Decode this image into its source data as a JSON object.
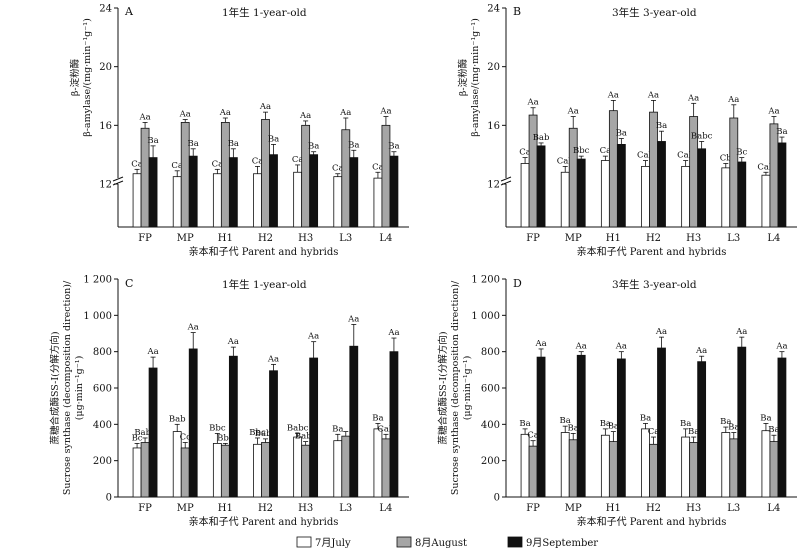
{
  "colors": {
    "july": "#ffffff",
    "august": "#a6a6a6",
    "september": "#111111"
  },
  "legend": {
    "july": "7月July",
    "august": "8月August",
    "september": "9月September"
  },
  "chart_data": [
    {
      "type": "bar",
      "panel": "A",
      "title": "1年生 1-year-old",
      "ylabel_cn": "β-淀粉酶",
      "ylabel_en": "β-amylase/(mg·min⁻¹g⁻¹)",
      "xlabel": "亲本和子代 Parent and hybrids",
      "categories": [
        "FP",
        "MP",
        "H1",
        "H2",
        "H3",
        "L3",
        "L4"
      ],
      "ylim": [
        0,
        24
      ],
      "yaxis_break": true,
      "yticks": [
        "12",
        "16",
        "20",
        "24"
      ],
      "series": [
        {
          "name": "7月July",
          "values": [
            12.7,
            12.5,
            12.7,
            12.7,
            12.8,
            12.5,
            12.4
          ],
          "errors": [
            0.3,
            0.4,
            0.3,
            0.5,
            0.5,
            0.2,
            0.4
          ],
          "labels": [
            "Ca",
            "Ca",
            "Ca",
            "Ca",
            "Ca",
            "Ca",
            "Ca"
          ]
        },
        {
          "name": "8月August",
          "values": [
            15.8,
            16.2,
            16.2,
            16.4,
            16.0,
            15.7,
            16.0
          ],
          "errors": [
            0.4,
            0.2,
            0.3,
            0.5,
            0.3,
            0.8,
            0.6
          ],
          "labels": [
            "Aa",
            "Aa",
            "Aa",
            "Aa",
            "Aa",
            "Aa",
            "Aa"
          ]
        },
        {
          "name": "9月September",
          "values": [
            13.8,
            13.9,
            13.8,
            14.0,
            14.0,
            13.8,
            13.9
          ],
          "errors": [
            0.8,
            0.5,
            0.6,
            0.7,
            0.2,
            0.5,
            0.3
          ],
          "labels": [
            "Ba",
            "Ba",
            "Ba",
            "Ba",
            "Ba",
            "Ba",
            "Ba"
          ]
        }
      ]
    },
    {
      "type": "bar",
      "panel": "B",
      "title": "3年生 3-year-old",
      "ylabel_cn": "β-淀粉酶",
      "ylabel_en": "β-amylase/(mg·min⁻¹g⁻¹)",
      "xlabel": "亲本和子代 Parent and hybrids",
      "categories": [
        "FP",
        "MP",
        "H1",
        "H2",
        "H3",
        "L3",
        "L4"
      ],
      "ylim": [
        0,
        24
      ],
      "yaxis_break": true,
      "yticks": [
        "12",
        "16",
        "20",
        "24"
      ],
      "series": [
        {
          "name": "7月July",
          "values": [
            13.4,
            12.8,
            13.6,
            13.2,
            13.2,
            13.1,
            12.6
          ],
          "errors": [
            0.4,
            0.4,
            0.3,
            0.4,
            0.4,
            0.3,
            0.2
          ],
          "labels": [
            "Ca",
            "Cab",
            "Ca",
            "Cab",
            "Cab",
            "Cb",
            "Cab"
          ]
        },
        {
          "name": "8月August",
          "values": [
            16.7,
            15.8,
            17.0,
            16.9,
            16.6,
            16.5,
            16.1
          ],
          "errors": [
            0.5,
            0.8,
            0.7,
            0.8,
            0.9,
            0.9,
            0.5
          ],
          "labels": [
            "Aa",
            "Aa",
            "Aa",
            "Aa",
            "Aa",
            "Aa",
            "Aa"
          ]
        },
        {
          "name": "9月September",
          "values": [
            14.6,
            13.7,
            14.7,
            14.9,
            14.4,
            13.5,
            14.8
          ],
          "errors": [
            0.2,
            0.2,
            0.4,
            0.7,
            0.5,
            0.3,
            0.4
          ],
          "labels": [
            "Bab",
            "Bbc",
            "Ba",
            "Ba",
            "Babc",
            "Bc",
            "Ba"
          ]
        }
      ]
    },
    {
      "type": "bar",
      "panel": "C",
      "title": "1年生 1-year-old",
      "ylabel_cn": "蔗糖合成酶SS-I(分解方向)",
      "ylabel_en": "Sucrose synthase (decomposition direction)/",
      "ylabel_unit": "(μg·min⁻¹g⁻¹)",
      "xlabel": "亲本和子代 Parent and hybrids",
      "categories": [
        "FP",
        "MP",
        "H1",
        "H2",
        "H3",
        "L3",
        "L4"
      ],
      "ylim": [
        0,
        1200
      ],
      "yticks": [
        "0",
        "200",
        "400",
        "600",
        "800",
        "1 000",
        "1 200"
      ],
      "series": [
        {
          "name": "7月July",
          "values": [
            270,
            360,
            295,
            290,
            330,
            310,
            375
          ],
          "errors": [
            25,
            40,
            55,
            35,
            20,
            35,
            30
          ],
          "labels": [
            "Bc",
            "Bab",
            "Bbc",
            "Bbc",
            "Babc",
            "Ba",
            "Ba"
          ]
        },
        {
          "name": "8月August",
          "values": [
            300,
            270,
            285,
            300,
            285,
            335,
            320
          ],
          "errors": [
            25,
            30,
            10,
            20,
            20,
            25,
            25
          ],
          "labels": [
            "Babc",
            "Cc",
            "Bbc",
            "Babc",
            "Babc",
            "",
            "Cab"
          ]
        },
        {
          "name": "9月September",
          "values": [
            710,
            815,
            775,
            695,
            765,
            830,
            800
          ],
          "errors": [
            60,
            90,
            50,
            35,
            90,
            120,
            75
          ],
          "labels": [
            "Aa",
            "Aa",
            "Aa",
            "Aa",
            "Aa",
            "Aa",
            "Aa"
          ]
        }
      ]
    },
    {
      "type": "bar",
      "panel": "D",
      "title": "3年生 3-year-old",
      "ylabel_cn": "蔗糖合成酶SS-I(分解方向)",
      "ylabel_en": "Sucrose synthase (decomposition direction)/",
      "ylabel_unit": "(μg·min⁻¹g⁻¹)",
      "xlabel": "亲本和子代 Parent and hybrids",
      "categories": [
        "FP",
        "MP",
        "H1",
        "H2",
        "H3",
        "L3",
        "L4"
      ],
      "ylim": [
        0,
        1200
      ],
      "yticks": [
        "0",
        "200",
        "400",
        "600",
        "800",
        "1 000",
        "1 200"
      ],
      "series": [
        {
          "name": "7月July",
          "values": [
            345,
            355,
            340,
            375,
            330,
            355,
            365
          ],
          "errors": [
            30,
            35,
            35,
            30,
            45,
            30,
            40
          ],
          "labels": [
            "Ba",
            "Ba",
            "Ba",
            "Ba",
            "Ba",
            "Ba",
            "Ba"
          ]
        },
        {
          "name": "8月August",
          "values": [
            280,
            315,
            305,
            290,
            300,
            320,
            305
          ],
          "errors": [
            30,
            35,
            55,
            40,
            30,
            35,
            35
          ],
          "labels": [
            "Ca",
            "Ba",
            "Ba",
            "Ca",
            "Ba",
            "Ba",
            "Ba"
          ]
        },
        {
          "name": "9月September",
          "values": [
            770,
            780,
            760,
            820,
            745,
            825,
            765
          ],
          "errors": [
            45,
            20,
            40,
            60,
            30,
            55,
            35
          ],
          "labels": [
            "Aa",
            "Aa",
            "Aa",
            "Aa",
            "Aa",
            "Aa",
            "Aa"
          ]
        }
      ]
    }
  ]
}
